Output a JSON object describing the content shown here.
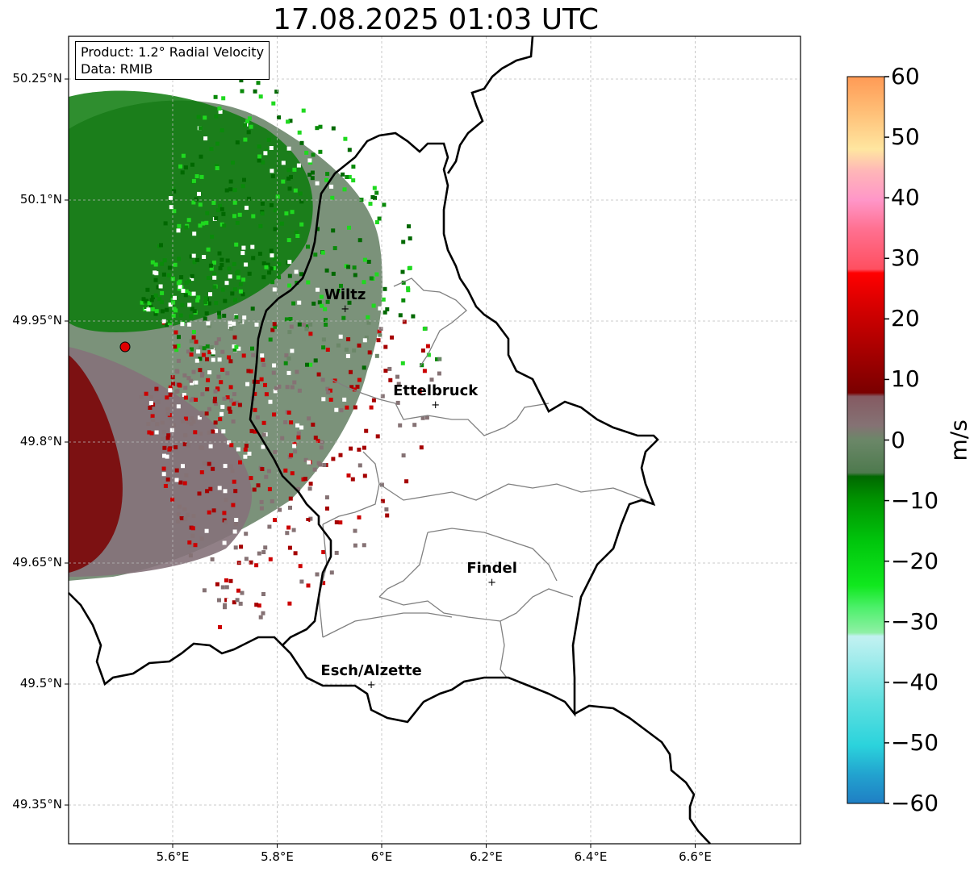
{
  "title": "17.08.2025 01:03 UTC",
  "info": {
    "product": "Product: 1.2° Radial Velocity",
    "data": "Data: RMIB"
  },
  "axes": {
    "lon_ticks": [
      "5.6°E",
      "5.8°E",
      "6°E",
      "6.2°E",
      "6.4°E",
      "6.6°E"
    ],
    "lat_ticks": [
      "50.25°N",
      "50.1°N",
      "49.95°N",
      "49.8°N",
      "49.65°N",
      "49.5°N",
      "49.35°N"
    ],
    "lon_values": [
      5.6,
      5.8,
      6.0,
      6.2,
      6.4,
      6.6
    ],
    "lat_values": [
      50.25,
      50.1,
      49.95,
      49.8,
      49.65,
      49.5,
      49.35
    ]
  },
  "cities": [
    {
      "name": "Wiltz",
      "lon": 5.93,
      "lat": 49.966
    },
    {
      "name": "Ettelbruck",
      "lon": 6.103,
      "lat": 49.847
    },
    {
      "name": "Findel",
      "lon": 6.211,
      "lat": 49.627
    },
    {
      "name": "Esch/Alzette",
      "lon": 5.98,
      "lat": 49.5
    }
  ],
  "radar_site": {
    "lon": 5.506,
    "lat": 49.914
  },
  "colorbar": {
    "label": "m/s",
    "min": -60,
    "max": 60,
    "ticks": [
      "60",
      "50",
      "40",
      "30",
      "20",
      "10",
      "0",
      "−10",
      "−20",
      "−30",
      "−40",
      "−50",
      "−60"
    ],
    "tick_values": [
      60,
      50,
      40,
      30,
      20,
      10,
      0,
      -10,
      -20,
      -30,
      -40,
      -50,
      -60
    ]
  },
  "colors": {
    "border": "#000000",
    "canton": "#808080",
    "grid": "#bbbbbb",
    "radar_site": "#e00000"
  }
}
